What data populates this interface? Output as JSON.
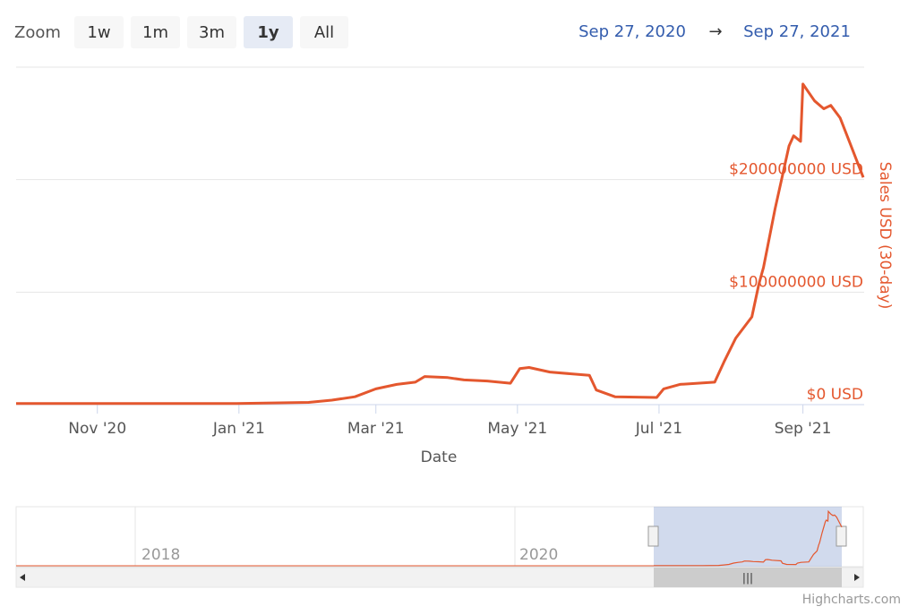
{
  "chart_data": {
    "type": "line",
    "zoom_label": "Zoom",
    "zoom_buttons": [
      "1w",
      "1m",
      "3m",
      "1y",
      "All"
    ],
    "zoom_selected": 3,
    "range_from": "Sep 27, 2020",
    "range_arrow": "→",
    "range_to": "Sep 27, 2021",
    "x_label": "Date",
    "y_label": "Sales USD (30-day)",
    "navigator_labels": [
      "2018",
      "2020"
    ],
    "credits": "Highcharts.com",
    "grid": true,
    "xlim": [
      "2020-09-27",
      "2021-09-27"
    ],
    "xticks": [
      {
        "value": "2020-11-01",
        "label": "Nov '20"
      },
      {
        "value": "2021-01-01",
        "label": "Jan '21"
      },
      {
        "value": "2021-03-01",
        "label": "Mar '21"
      },
      {
        "value": "2021-05-01",
        "label": "May '21"
      },
      {
        "value": "2021-07-01",
        "label": "Jul '21"
      },
      {
        "value": "2021-09-01",
        "label": "Sep '21"
      }
    ],
    "ylim": [
      0,
      300000000
    ],
    "yticks": [
      {
        "value": 0,
        "label": "$0 USD"
      },
      {
        "value": 100000000,
        "label": "$100000000 USD"
      },
      {
        "value": 200000000,
        "label": "$200000000 USD"
      }
    ],
    "x": [
      "2020-09-27",
      "2020-12-31",
      "2021-01-31",
      "2021-02-10",
      "2021-02-20",
      "2021-03-01",
      "2021-03-10",
      "2021-03-18",
      "2021-03-22",
      "2021-04-01",
      "2021-04-08",
      "2021-04-18",
      "2021-04-28",
      "2021-05-02",
      "2021-05-06",
      "2021-05-15",
      "2021-06-01",
      "2021-06-04",
      "2021-06-12",
      "2021-06-30",
      "2021-07-03",
      "2021-07-10",
      "2021-07-25",
      "2021-07-29",
      "2021-08-03",
      "2021-08-10",
      "2021-08-13",
      "2021-08-15",
      "2021-08-20",
      "2021-08-26",
      "2021-08-28",
      "2021-08-31",
      "2021-09-01",
      "2021-09-06",
      "2021-09-10",
      "2021-09-13",
      "2021-09-17",
      "2021-09-21",
      "2021-09-27"
    ],
    "series": [
      {
        "name": "Sales USD (30-day)",
        "color": "#e4572e",
        "values": [
          1000000,
          1000000,
          2000000,
          4000000,
          7000000,
          14000000,
          18000000,
          20000000,
          25000000,
          24000000,
          22000000,
          21000000,
          19000000,
          32000000,
          33000000,
          29000000,
          26000000,
          13000000,
          7000000,
          6400000,
          14000000,
          18000000,
          20000000,
          38000000,
          59000000,
          78000000,
          107000000,
          122000000,
          174000000,
          230000000,
          239000000,
          234000000,
          285000000,
          270000000,
          263000000,
          266000000,
          255000000,
          234000000,
          202000000
        ]
      }
    ]
  }
}
